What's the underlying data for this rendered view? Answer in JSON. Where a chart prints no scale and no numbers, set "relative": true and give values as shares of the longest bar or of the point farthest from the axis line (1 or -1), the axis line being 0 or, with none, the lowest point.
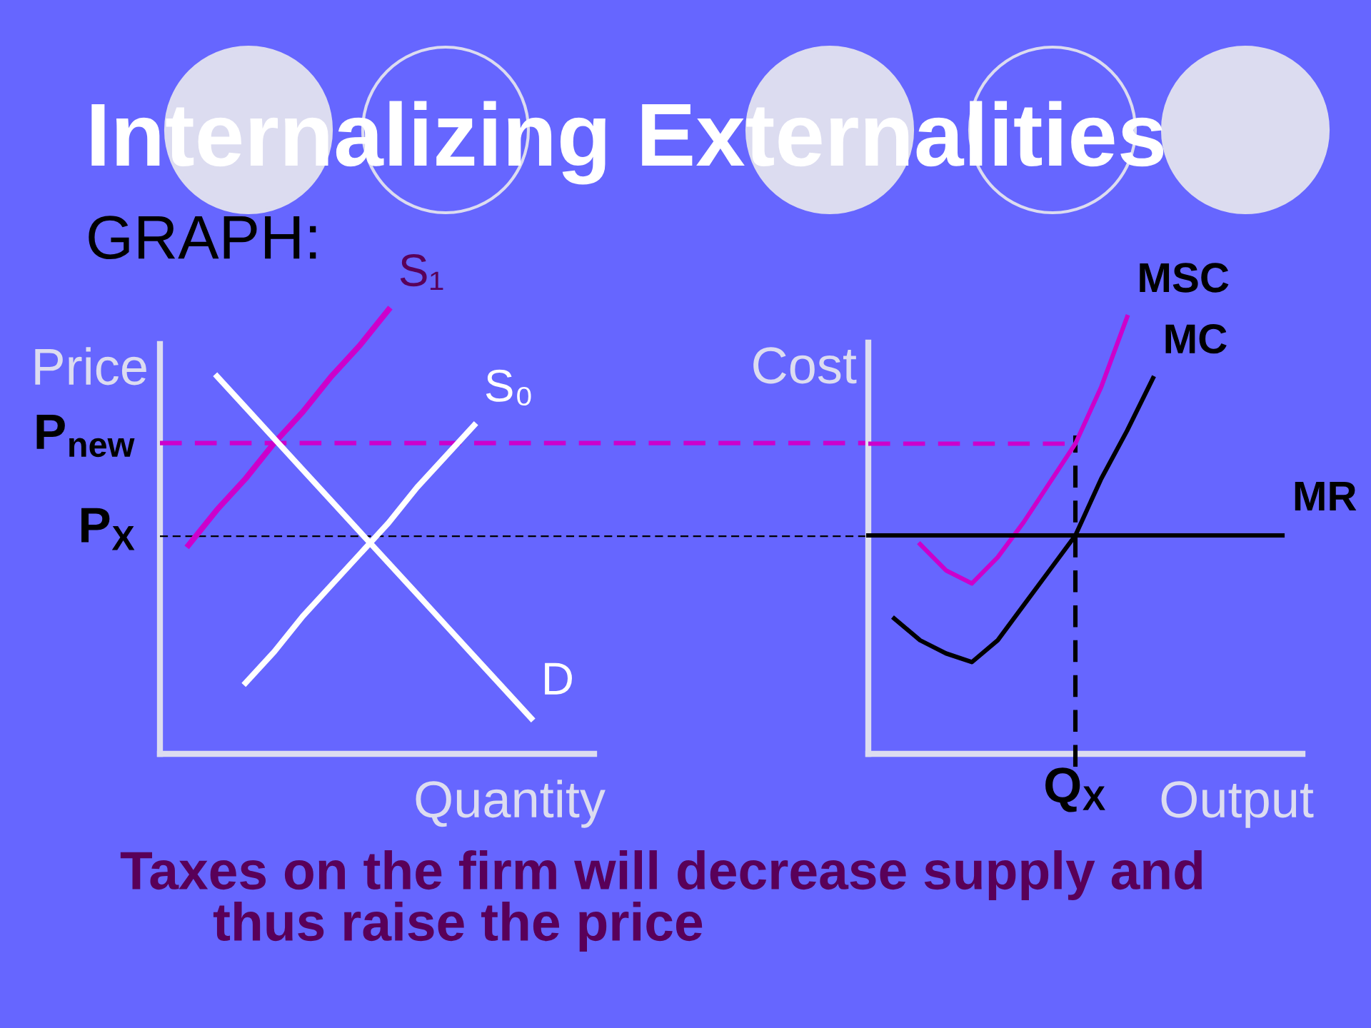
{
  "chart_data": [
    {
      "type": "line",
      "title": "Internalizing Externalities",
      "subtitle": "GRAPH:",
      "ylabel": "Price",
      "xlabel": "Quantity",
      "relative": true,
      "categories": [
        null,
        null,
        null,
        null,
        null,
        null,
        null,
        null,
        null,
        null,
        null,
        null,
        null,
        null,
        null,
        null
      ],
      "series": [
        {
          "name": "S₁",
          "color": "#cc00cc",
          "values": [
            null,
            0.47,
            0.55,
            0.62,
            0.7,
            0.77,
            0.85,
            0.92,
            1.0,
            null,
            null,
            null,
            null,
            null,
            null,
            null
          ]
        },
        {
          "name": "S₀",
          "color": "#ffffff",
          "values": [
            null,
            null,
            null,
            0.16,
            0.23,
            0.31,
            0.38,
            0.45,
            0.52,
            0.6,
            0.67,
            0.74,
            null,
            null,
            null,
            null
          ]
        },
        {
          "name": "D",
          "color": "#ffffff",
          "values": [
            null,
            null,
            0.85,
            0.78,
            0.71,
            0.64,
            0.57,
            0.5,
            0.43,
            0.36,
            0.29,
            0.22,
            0.15,
            0.08,
            null,
            null
          ]
        }
      ],
      "ref_lines": [
        {
          "axis": "y",
          "value": 0.7,
          "label": "P$_{new}$",
          "color": "#cc00cc",
          "line_style": "dashed"
        },
        {
          "axis": "y",
          "value": 0.49,
          "label": "P$_{X}$",
          "color": "#000000",
          "line_style": "dashed"
        }
      ],
      "annotations": [
        "Taxes on the firm will decrease supply and\nthus raise the price"
      ]
    },
    {
      "type": "line",
      "ylabel": "Cost",
      "xlabel": "Output",
      "relative": true,
      "categories": [
        null,
        null,
        null,
        null,
        null,
        null,
        null,
        null,
        null,
        null,
        null,
        null,
        null,
        null,
        null,
        null,
        null
      ],
      "series": [
        {
          "name": "MSC",
          "color": "#cc00cc",
          "values": [
            null,
            null,
            0.48,
            0.42,
            0.39,
            0.45,
            0.53,
            0.62,
            0.71,
            0.84,
            1.0,
            null,
            null,
            null,
            null,
            null,
            null
          ]
        },
        {
          "name": "MC",
          "color": "#000000",
          "values": [
            null,
            0.31,
            0.26,
            0.23,
            0.21,
            0.26,
            0.34,
            0.42,
            0.5,
            0.63,
            0.74,
            0.86,
            null,
            null,
            null,
            null,
            null
          ]
        },
        {
          "name": "MR",
          "color": "#000000",
          "values": [
            0.5,
            0.5,
            0.5,
            0.5,
            0.5,
            0.5,
            0.5,
            0.5,
            0.5,
            0.5,
            0.5,
            0.5,
            0.5,
            0.5,
            0.5,
            0.5,
            0.5
          ]
        },
        {
          "color": "#cc00cc",
          "line_style": "dashed",
          "values": [
            0.71,
            0.71,
            0.71,
            0.71,
            0.71,
            0.71,
            0.71,
            0.71,
            0.71,
            null,
            null,
            null,
            null,
            null,
            null,
            null,
            null
          ]
        }
      ],
      "annotations": [
        "Q$_{X}$"
      ]
    }
  ]
}
